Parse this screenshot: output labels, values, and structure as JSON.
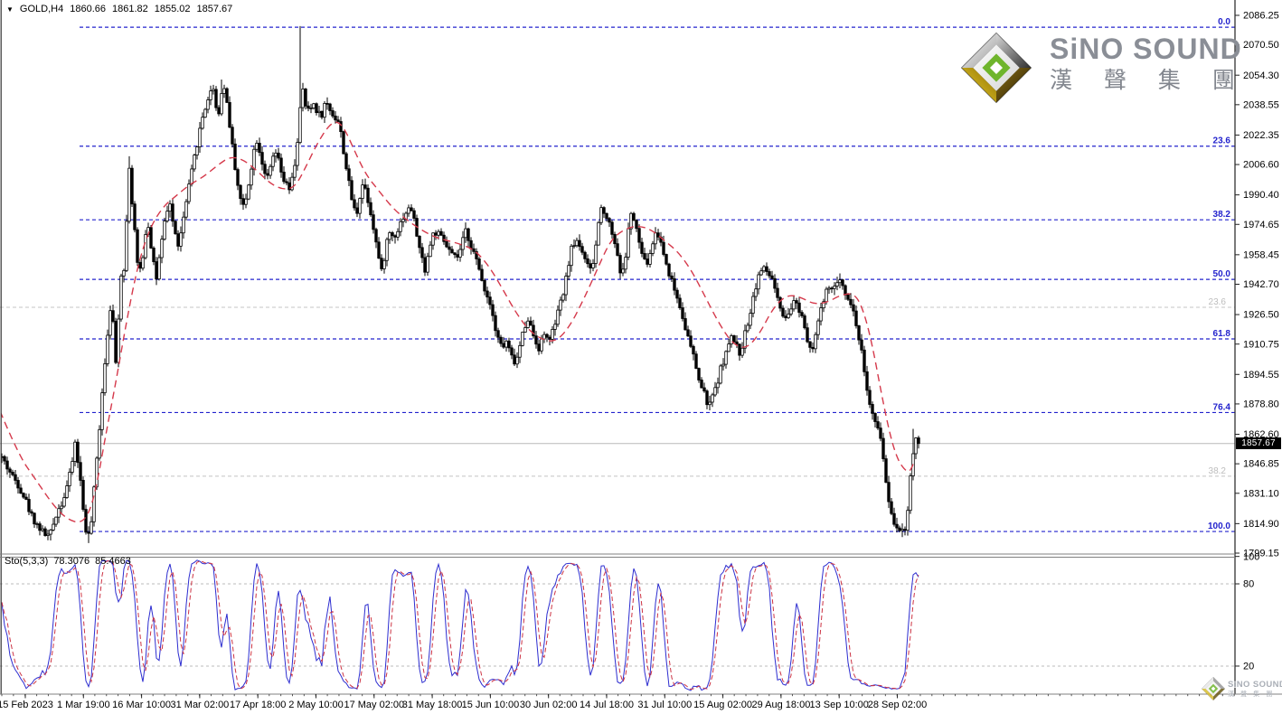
{
  "header": {
    "symbol": "GOLD,H4",
    "open": "1860.66",
    "high": "1861.82",
    "low": "1855.02",
    "close": "1857.67"
  },
  "indicator": {
    "label": "Sto(5,3,3)",
    "k": "78.3076",
    "d": "85.4663"
  },
  "price_tag": "1857.67",
  "logo": {
    "title": "SiNO SOUND",
    "subtitle": "漢 聲 集 團"
  },
  "watermark": {
    "title": "SiNO SOUND",
    "subtitle": "漢 聲 集 團"
  },
  "chart_data": {
    "type": "candlestick",
    "symbol": "GOLD",
    "timeframe": "H4",
    "current_bar": {
      "open": 1860.66,
      "high": 1861.82,
      "low": 1855.02,
      "close": 1857.67
    },
    "current_price": 1857.67,
    "ylim": [
      1795.5,
      2093.5
    ],
    "y_axis_ticks": [
      "2086.25",
      "2070.50",
      "2054.30",
      "2038.55",
      "2022.35",
      "2006.60",
      "1990.40",
      "1974.65",
      "1958.45",
      "1942.70",
      "1926.50",
      "1910.75",
      "1894.55",
      "1878.80",
      "1862.60",
      "1846.85",
      "1831.10",
      "1814.90",
      "1799.15"
    ],
    "x_axis_labels": [
      "15 Feb 2023",
      "1 Mar 19:00",
      "16 Mar 10:00",
      "31 Mar 02:00",
      "17 Apr 18:00",
      "2 May 10:00",
      "17 May 02:00",
      "31 May 18:00",
      "15 Jun 10:00",
      "30 Jun 02:00",
      "14 Jul 18:00",
      "31 Jul 10:00",
      "15 Aug 02:00",
      "29 Aug 18:00",
      "13 Sep 10:00",
      "28 Sep 02:00"
    ],
    "fib_levels_primary": [
      {
        "label": "0.0",
        "price": 2079.9
      },
      {
        "label": "23.6",
        "price": 2016.4
      },
      {
        "label": "38.2",
        "price": 1977.1
      },
      {
        "label": "50.0",
        "price": 1945.3
      },
      {
        "label": "61.8",
        "price": 1913.5
      },
      {
        "label": "76.4",
        "price": 1874.2
      },
      {
        "label": "100.0",
        "price": 1810.7
      }
    ],
    "fib_levels_secondary": [
      {
        "label": "23.6",
        "price": 1930.4
      },
      {
        "label": "38.2",
        "price": 1840.2
      }
    ],
    "price_path": [
      [
        0,
        1852
      ],
      [
        8,
        1845
      ],
      [
        14,
        1840
      ],
      [
        20,
        1836
      ],
      [
        28,
        1828
      ],
      [
        34,
        1820
      ],
      [
        40,
        1815
      ],
      [
        48,
        1810
      ],
      [
        55,
        1808
      ],
      [
        62,
        1820
      ],
      [
        70,
        1828
      ],
      [
        78,
        1842
      ],
      [
        83,
        1858
      ],
      [
        88,
        1842
      ],
      [
        93,
        1818
      ],
      [
        97,
        1806
      ],
      [
        101,
        1816
      ],
      [
        105,
        1838
      ],
      [
        109,
        1860
      ],
      [
        113,
        1886
      ],
      [
        117,
        1906
      ],
      [
        121,
        1928
      ],
      [
        124,
        1936
      ],
      [
        127,
        1892
      ],
      [
        131,
        1926
      ],
      [
        134,
        1948
      ],
      [
        137,
        1952
      ],
      [
        140,
        1976
      ],
      [
        143,
        2006
      ],
      [
        146,
        1986
      ],
      [
        150,
        1966
      ],
      [
        153,
        1946
      ],
      [
        158,
        1958
      ],
      [
        163,
        1978
      ],
      [
        168,
        1960
      ],
      [
        173,
        1946
      ],
      [
        178,
        1962
      ],
      [
        183,
        1978
      ],
      [
        188,
        1986
      ],
      [
        193,
        1970
      ],
      [
        198,
        1963
      ],
      [
        203,
        1978
      ],
      [
        208,
        1992
      ],
      [
        213,
        2005
      ],
      [
        218,
        2018
      ],
      [
        224,
        2032
      ],
      [
        230,
        2042
      ],
      [
        236,
        2048
      ],
      [
        241,
        2030
      ],
      [
        246,
        2050
      ],
      [
        250,
        2044
      ],
      [
        254,
        2028
      ],
      [
        258,
        2012
      ],
      [
        263,
        1996
      ],
      [
        268,
        1983
      ],
      [
        272,
        1988
      ],
      [
        276,
        2000
      ],
      [
        280,
        2012
      ],
      [
        284,
        2020
      ],
      [
        288,
        2012
      ],
      [
        292,
        2004
      ],
      [
        296,
        1999
      ],
      [
        300,
        2006
      ],
      [
        304,
        2014
      ],
      [
        308,
        2008
      ],
      [
        312,
        2000
      ],
      [
        316,
        1996
      ],
      [
        320,
        1993
      ],
      [
        324,
        2000
      ],
      [
        328,
        2014
      ],
      [
        331,
        2030
      ],
      [
        334,
        2048
      ],
      [
        338,
        2038
      ],
      [
        342,
        2034
      ],
      [
        346,
        2040
      ],
      [
        350,
        2036
      ],
      [
        355,
        2032
      ],
      [
        360,
        2040
      ],
      [
        365,
        2036
      ],
      [
        370,
        2032
      ],
      [
        375,
        2029
      ],
      [
        378,
        2020
      ],
      [
        382,
        2008
      ],
      [
        386,
        1996
      ],
      [
        390,
        1986
      ],
      [
        394,
        1979
      ],
      [
        398,
        1990
      ],
      [
        402,
        1998
      ],
      [
        406,
        1990
      ],
      [
        410,
        1981
      ],
      [
        414,
        1971
      ],
      [
        418,
        1959
      ],
      [
        422,
        1949
      ],
      [
        426,
        1960
      ],
      [
        430,
        1971
      ],
      [
        435,
        1968
      ],
      [
        440,
        1972
      ],
      [
        445,
        1978
      ],
      [
        450,
        1982
      ],
      [
        455,
        1983
      ],
      [
        460,
        1972
      ],
      [
        465,
        1959
      ],
      [
        470,
        1951
      ],
      [
        475,
        1962
      ],
      [
        480,
        1971
      ],
      [
        485,
        1969
      ],
      [
        490,
        1966
      ],
      [
        495,
        1962
      ],
      [
        500,
        1958
      ],
      [
        505,
        1956
      ],
      [
        510,
        1962
      ],
      [
        515,
        1971
      ],
      [
        520,
        1965
      ],
      [
        525,
        1958
      ],
      [
        530,
        1950
      ],
      [
        535,
        1942
      ],
      [
        540,
        1935
      ],
      [
        545,
        1928
      ],
      [
        548,
        1919
      ],
      [
        552,
        1913
      ],
      [
        556,
        1908
      ],
      [
        560,
        1912
      ],
      [
        564,
        1906
      ],
      [
        568,
        1901
      ],
      [
        572,
        1903
      ],
      [
        576,
        1912
      ],
      [
        580,
        1920
      ],
      [
        584,
        1925
      ],
      [
        588,
        1918
      ],
      [
        592,
        1913
      ],
      [
        596,
        1909
      ],
      [
        600,
        1913
      ],
      [
        604,
        1918
      ],
      [
        607,
        1911
      ],
      [
        610,
        1915
      ],
      [
        614,
        1922
      ],
      [
        618,
        1929
      ],
      [
        622,
        1936
      ],
      [
        626,
        1945
      ],
      [
        630,
        1958
      ],
      [
        634,
        1964
      ],
      [
        638,
        1966
      ],
      [
        642,
        1963
      ],
      [
        646,
        1958
      ],
      [
        650,
        1952
      ],
      [
        654,
        1949
      ],
      [
        658,
        1959
      ],
      [
        662,
        1976
      ],
      [
        666,
        1985
      ],
      [
        670,
        1980
      ],
      [
        674,
        1975
      ],
      [
        678,
        1969
      ],
      [
        682,
        1961
      ],
      [
        686,
        1950
      ],
      [
        690,
        1949
      ],
      [
        694,
        1968
      ],
      [
        698,
        1981
      ],
      [
        702,
        1975
      ],
      [
        706,
        1967
      ],
      [
        710,
        1959
      ],
      [
        714,
        1953
      ],
      [
        718,
        1956
      ],
      [
        722,
        1965
      ],
      [
        726,
        1971
      ],
      [
        730,
        1967
      ],
      [
        734,
        1959
      ],
      [
        738,
        1952
      ],
      [
        742,
        1946
      ],
      [
        746,
        1940
      ],
      [
        750,
        1934
      ],
      [
        754,
        1928
      ],
      [
        758,
        1920
      ],
      [
        762,
        1912
      ],
      [
        766,
        1906
      ],
      [
        770,
        1898
      ],
      [
        774,
        1890
      ],
      [
        778,
        1885
      ],
      [
        782,
        1880
      ],
      [
        786,
        1878
      ],
      [
        790,
        1886
      ],
      [
        794,
        1892
      ],
      [
        798,
        1899
      ],
      [
        802,
        1905
      ],
      [
        806,
        1910
      ],
      [
        810,
        1915
      ],
      [
        814,
        1910
      ],
      [
        818,
        1906
      ],
      [
        822,
        1912
      ],
      [
        826,
        1920
      ],
      [
        830,
        1929
      ],
      [
        834,
        1938
      ],
      [
        838,
        1946
      ],
      [
        842,
        1951
      ],
      [
        846,
        1950
      ],
      [
        850,
        1948
      ],
      [
        854,
        1946
      ],
      [
        858,
        1938
      ],
      [
        862,
        1930
      ],
      [
        866,
        1925
      ],
      [
        870,
        1922
      ],
      [
        874,
        1928
      ],
      [
        878,
        1934
      ],
      [
        882,
        1931
      ],
      [
        886,
        1928
      ],
      [
        890,
        1920
      ],
      [
        894,
        1912
      ],
      [
        898,
        1908
      ],
      [
        902,
        1916
      ],
      [
        906,
        1925
      ],
      [
        910,
        1932
      ],
      [
        914,
        1938
      ],
      [
        918,
        1942
      ],
      [
        922,
        1940
      ],
      [
        926,
        1942
      ],
      [
        930,
        1946
      ],
      [
        934,
        1940
      ],
      [
        938,
        1936
      ],
      [
        942,
        1931
      ],
      [
        946,
        1924
      ],
      [
        950,
        1914
      ],
      [
        954,
        1904
      ],
      [
        958,
        1890
      ],
      [
        962,
        1878
      ],
      [
        966,
        1870
      ],
      [
        970,
        1866
      ],
      [
        974,
        1862
      ],
      [
        978,
        1845
      ],
      [
        982,
        1830
      ],
      [
        986,
        1820
      ],
      [
        990,
        1815
      ],
      [
        994,
        1812
      ],
      [
        998,
        1813
      ],
      [
        1002,
        1810
      ],
      [
        1005,
        1830
      ],
      [
        1008,
        1845
      ],
      [
        1011,
        1856
      ],
      [
        1014,
        1857.67
      ]
    ],
    "ma_path": [
      [
        0,
        1875
      ],
      [
        20,
        1852
      ],
      [
        40,
        1838
      ],
      [
        60,
        1824
      ],
      [
        75,
        1817
      ],
      [
        90,
        1815
      ],
      [
        100,
        1822
      ],
      [
        108,
        1838
      ],
      [
        118,
        1865
      ],
      [
        128,
        1890
      ],
      [
        140,
        1923
      ],
      [
        152,
        1952
      ],
      [
        165,
        1972
      ],
      [
        180,
        1984
      ],
      [
        195,
        1990
      ],
      [
        210,
        1996
      ],
      [
        225,
        2000
      ],
      [
        240,
        2006
      ],
      [
        255,
        2011
      ],
      [
        270,
        2009
      ],
      [
        285,
        2003
      ],
      [
        300,
        1996
      ],
      [
        315,
        1993
      ],
      [
        327,
        1995
      ],
      [
        339,
        2006
      ],
      [
        351,
        2018
      ],
      [
        363,
        2027
      ],
      [
        372,
        2030
      ],
      [
        381,
        2026
      ],
      [
        393,
        2013
      ],
      [
        405,
        2001
      ],
      [
        420,
        1992
      ],
      [
        435,
        1983
      ],
      [
        450,
        1977
      ],
      [
        465,
        1972
      ],
      [
        480,
        1968
      ],
      [
        495,
        1966
      ],
      [
        510,
        1964
      ],
      [
        525,
        1961
      ],
      [
        540,
        1953
      ],
      [
        555,
        1941
      ],
      [
        570,
        1928
      ],
      [
        585,
        1918
      ],
      [
        600,
        1913
      ],
      [
        615,
        1912
      ],
      [
        630,
        1920
      ],
      [
        645,
        1934
      ],
      [
        660,
        1950
      ],
      [
        675,
        1966
      ],
      [
        690,
        1972
      ],
      [
        705,
        1974
      ],
      [
        720,
        1972
      ],
      [
        735,
        1966
      ],
      [
        750,
        1960
      ],
      [
        765,
        1950
      ],
      [
        780,
        1936
      ],
      [
        795,
        1922
      ],
      [
        810,
        1911
      ],
      [
        825,
        1908
      ],
      [
        840,
        1916
      ],
      [
        855,
        1930
      ],
      [
        870,
        1937
      ],
      [
        885,
        1936
      ],
      [
        900,
        1932
      ],
      [
        915,
        1933
      ],
      [
        930,
        1937
      ],
      [
        945,
        1938
      ],
      [
        955,
        1929
      ],
      [
        965,
        1910
      ],
      [
        975,
        1884
      ],
      [
        985,
        1861
      ],
      [
        993,
        1849
      ],
      [
        1000,
        1844
      ],
      [
        1006,
        1842
      ],
      [
        1012,
        1849
      ]
    ],
    "spikes": [
      {
        "x": 333,
        "price": 2080.5,
        "side": "high"
      },
      {
        "x": 143,
        "price": 2011,
        "side": "high"
      },
      {
        "x": 246,
        "price": 2052,
        "side": "high"
      },
      {
        "x": 455,
        "price": 1984.5,
        "side": "high"
      },
      {
        "x": 930,
        "price": 1948.5,
        "side": "high"
      },
      {
        "x": 1010,
        "price": 1865.5,
        "side": "high"
      },
      {
        "x": 97,
        "price": 1804.5,
        "side": "low"
      },
      {
        "x": 568,
        "price": 1899,
        "side": "low"
      },
      {
        "x": 786,
        "price": 1876.5,
        "side": "low"
      },
      {
        "x": 1003,
        "price": 1808.5,
        "side": "low"
      }
    ],
    "stochastic": {
      "label": "Sto(5,3,3)",
      "k": 78.3076,
      "d": 85.4663,
      "levels": [
        80,
        20
      ],
      "axis_ticks": [
        "100",
        "80",
        "20"
      ]
    },
    "colors": {
      "background": "#ffffff",
      "candle": "#000000",
      "ma_line": "#d5394b",
      "fib_primary": "#2323cd",
      "fib_secondary": "#c4c4c4",
      "price_line": "#b9b9b9",
      "sto_k": "#2d2dd0",
      "sto_d": "#cc3344",
      "tag_bg": "#000000",
      "tag_text": "#ffffff"
    }
  }
}
